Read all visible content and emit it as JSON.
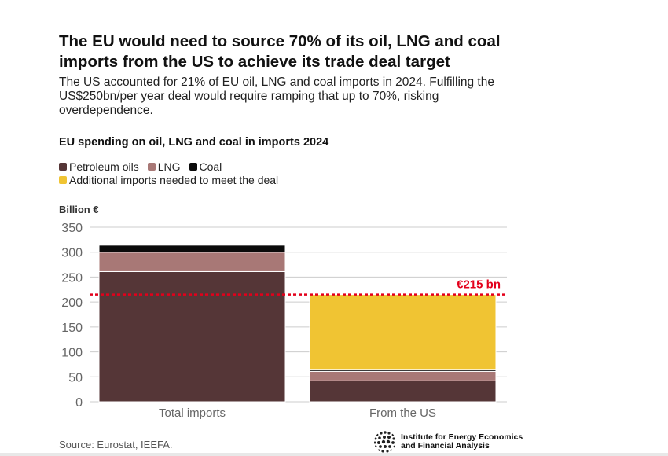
{
  "title": "The EU would need to source 70% of its oil, LNG and coal imports from the US to achieve its trade deal target",
  "subtitle": "The US accounted for 21% of EU oil, LNG and coal imports in 2024. Fulfilling the US$250bn/per year deal would require ramping that up to 70%, risking overdependence.",
  "source": "Source: Eurostat, IEEFA.",
  "logo": {
    "line1": "Institute for Energy Economics",
    "line2": "and Financial Analysis"
  },
  "colors": {
    "petroleum": "#553637",
    "lng": "#a87876",
    "coal": "#0b0b0b",
    "additional": "#f0c433",
    "target_line": "#e3001b",
    "grid": "#cccccc",
    "axis_text": "#666666"
  },
  "chart_data": {
    "type": "bar",
    "stacked": true,
    "title": "EU spending on oil, LNG and coal in imports 2024",
    "ylabel": "Billion €",
    "xlabel": "",
    "ylim": [
      0,
      350
    ],
    "yticks": [
      0,
      50,
      100,
      150,
      200,
      250,
      300,
      350
    ],
    "grid": true,
    "legend_position": "top-left",
    "categories": [
      "Total imports",
      "From the US"
    ],
    "series": [
      {
        "name": "Petroleum oils",
        "key": "petroleum",
        "values": [
          261,
          42
        ]
      },
      {
        "name": "LNG",
        "key": "lng",
        "values": [
          39,
          19
        ]
      },
      {
        "name": "Coal",
        "key": "coal",
        "values": [
          14,
          4
        ]
      },
      {
        "name": "Additional imports needed to meet the deal",
        "key": "additional",
        "values": [
          0,
          150
        ]
      }
    ],
    "reference_line": {
      "value": 215,
      "label": "€215 bn"
    }
  }
}
